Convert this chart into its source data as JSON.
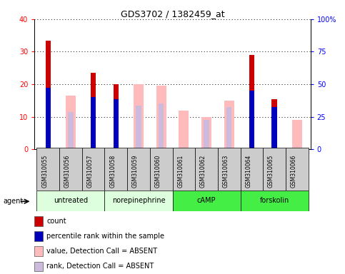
{
  "title": "GDS3702 / 1382459_at",
  "samples": [
    "GSM310055",
    "GSM310056",
    "GSM310057",
    "GSM310058",
    "GSM310059",
    "GSM310060",
    "GSM310061",
    "GSM310062",
    "GSM310063",
    "GSM310064",
    "GSM310065",
    "GSM310066"
  ],
  "count_values": [
    33.5,
    0,
    23.5,
    20.0,
    0,
    0,
    0,
    0,
    0,
    29.0,
    15.5,
    0
  ],
  "rank_values_pct": [
    47.5,
    0,
    40.0,
    38.75,
    0,
    0,
    0,
    0,
    0,
    45.0,
    32.5,
    0
  ],
  "pink_value": [
    0,
    16.5,
    0,
    0,
    20.0,
    19.5,
    12.0,
    10.0,
    15.0,
    0,
    0,
    9.0
  ],
  "pink_rank_pct": [
    0,
    28.75,
    0,
    0,
    33.75,
    35.0,
    0,
    22.5,
    32.5,
    0,
    0,
    0
  ],
  "color_count": "#cc0000",
  "color_rank": "#0000bb",
  "color_pink_value": "#ffbbbb",
  "color_pink_rank": "#ccbbdd",
  "ylim_left": [
    0,
    40
  ],
  "ylim_right": [
    0,
    100
  ],
  "yticks_left": [
    0,
    10,
    20,
    30,
    40
  ],
  "yticks_right": [
    0,
    25,
    50,
    75,
    100
  ],
  "ytick_labels_right": [
    "0",
    "25",
    "50",
    "75",
    "100%"
  ],
  "groups": [
    {
      "label": "untreated",
      "start": 0,
      "end": 3,
      "color": "#ddffdd"
    },
    {
      "label": "norepinephrine",
      "start": 3,
      "end": 6,
      "color": "#ddffdd"
    },
    {
      "label": "cAMP",
      "start": 6,
      "end": 9,
      "color": "#44ee44"
    },
    {
      "label": "forskolin",
      "start": 9,
      "end": 12,
      "color": "#44ee44"
    }
  ],
  "agent_label": "agent",
  "legend_items": [
    {
      "color": "#cc0000",
      "label": "count",
      "square": true
    },
    {
      "color": "#0000bb",
      "label": "percentile rank within the sample",
      "square": true
    },
    {
      "color": "#ffbbbb",
      "label": "value, Detection Call = ABSENT",
      "square": true
    },
    {
      "color": "#ccbbdd",
      "label": "rank, Detection Call = ABSENT",
      "square": true
    }
  ],
  "bar_width": 0.5,
  "background_plot": "#ffffff",
  "background_fig": "#ffffff",
  "label_box_color": "#cccccc"
}
